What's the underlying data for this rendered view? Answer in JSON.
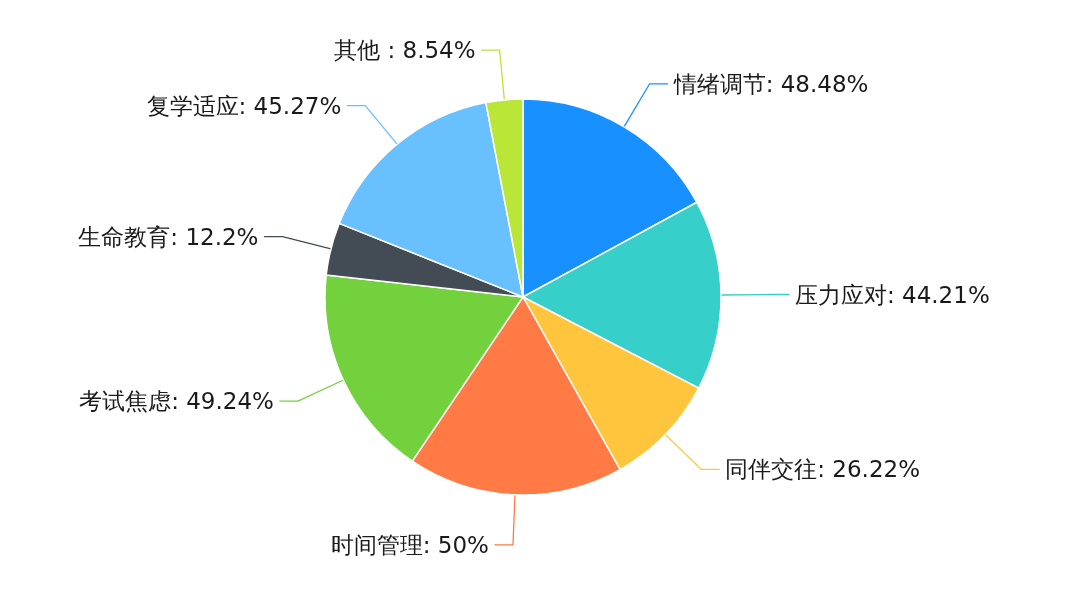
{
  "chart_data": {
    "type": "pie",
    "categories": [
      "情绪调节",
      "压力应对",
      "同伴交往",
      "时间管理",
      "考试焦虑",
      "生命教育",
      "复学适应",
      "其他 "
    ],
    "values": [
      48.48,
      44.21,
      26.22,
      50,
      49.24,
      12.2,
      45.27,
      8.54
    ],
    "value_labels": [
      "48.48%",
      "44.21%",
      "26.22%",
      "50%",
      "49.24%",
      "12.2%",
      "45.27%",
      "8.54%"
    ],
    "colors": [
      "#1890ff",
      "#36cfc9",
      "#ffc53d",
      "#ff7a45",
      "#73d13d",
      "#434c55",
      "#69c0ff",
      "#bae637"
    ]
  }
}
